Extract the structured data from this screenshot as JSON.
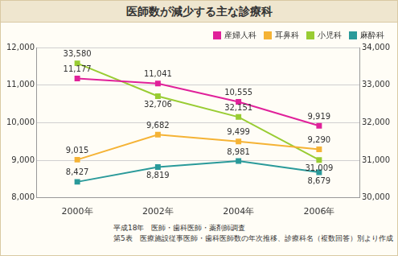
{
  "chart_data": {
    "type": "line",
    "title": "医師数が減少する主な診療科",
    "annotations": [
      "平成18年　医師・歯科医師・薬剤師調査",
      "第5表　医療施設従事医師・歯科医師数の年次推移、診療科名（複数回答）別より作成"
    ],
    "categories": [
      "2000年",
      "2002年",
      "2004年",
      "2006年"
    ],
    "series": [
      {
        "name": "産婦人科",
        "color": "#e0219a",
        "values": [
          11177,
          11041,
          10555,
          9919
        ],
        "value_labels": [
          "11,177",
          "11,041",
          "10,555",
          "9,919"
        ]
      },
      {
        "name": "耳鼻科",
        "color": "#f5b335",
        "values": [
          9015,
          9682,
          9499,
          9290
        ],
        "value_labels": [
          "9,015",
          "9,682",
          "9,499",
          "9,290"
        ]
      },
      {
        "name": "小児科",
        "color": "#99cc33",
        "axis": "y2",
        "values": [
          33580,
          32706,
          32151,
          31009
        ],
        "value_labels": [
          "33,580",
          "32,706",
          "32,151",
          "31,009"
        ]
      },
      {
        "name": "麻酔科",
        "color": "#2a9a9a",
        "values": [
          8427,
          8819,
          8981,
          8679
        ],
        "value_labels": [
          "8,427",
          "8,819",
          "8,981",
          "8,679"
        ]
      }
    ],
    "ylim": [
      8000,
      12000
    ],
    "yticks": [
      {
        "value": 8000,
        "label": "8,000"
      },
      {
        "value": 9000,
        "label": "9,000"
      },
      {
        "value": 10000,
        "label": "10,000"
      },
      {
        "value": 11000,
        "label": "11,000"
      },
      {
        "value": 12000,
        "label": "12,000"
      }
    ],
    "y2lim": [
      30000,
      34000
    ],
    "y2ticks": [
      {
        "value": 30000,
        "label": "30,000"
      },
      {
        "value": 31000,
        "label": "31,000"
      },
      {
        "value": 32000,
        "label": "32,000"
      },
      {
        "value": 33000,
        "label": "33,000"
      },
      {
        "value": 34000,
        "label": "34,000"
      }
    ],
    "grid": true,
    "legend": "top right",
    "marker": "square",
    "data_labels": true
  }
}
